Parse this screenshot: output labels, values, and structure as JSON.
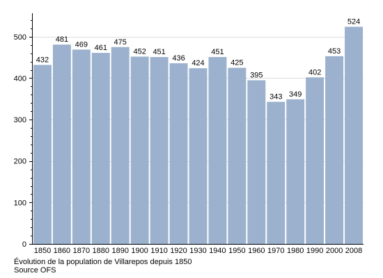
{
  "chart_data": {
    "type": "bar",
    "categories": [
      "1850",
      "1860",
      "1870",
      "1880",
      "1890",
      "1900",
      "1910",
      "1920",
      "1930",
      "1940",
      "1950",
      "1960",
      "1970",
      "1980",
      "1990",
      "2000",
      "2008"
    ],
    "values": [
      432,
      481,
      469,
      461,
      475,
      452,
      451,
      436,
      424,
      451,
      425,
      395,
      343,
      349,
      402,
      453,
      524
    ],
    "ylim": [
      0,
      540
    ],
    "yticks": [
      0,
      100,
      200,
      300,
      400,
      500
    ],
    "grid": true,
    "bar_color": "#9bb1cd",
    "grid_color": "#dddddd"
  },
  "caption": {
    "line1": "Évolution de la population de Villarepos depuis 1850",
    "line2": "Source OFS"
  }
}
